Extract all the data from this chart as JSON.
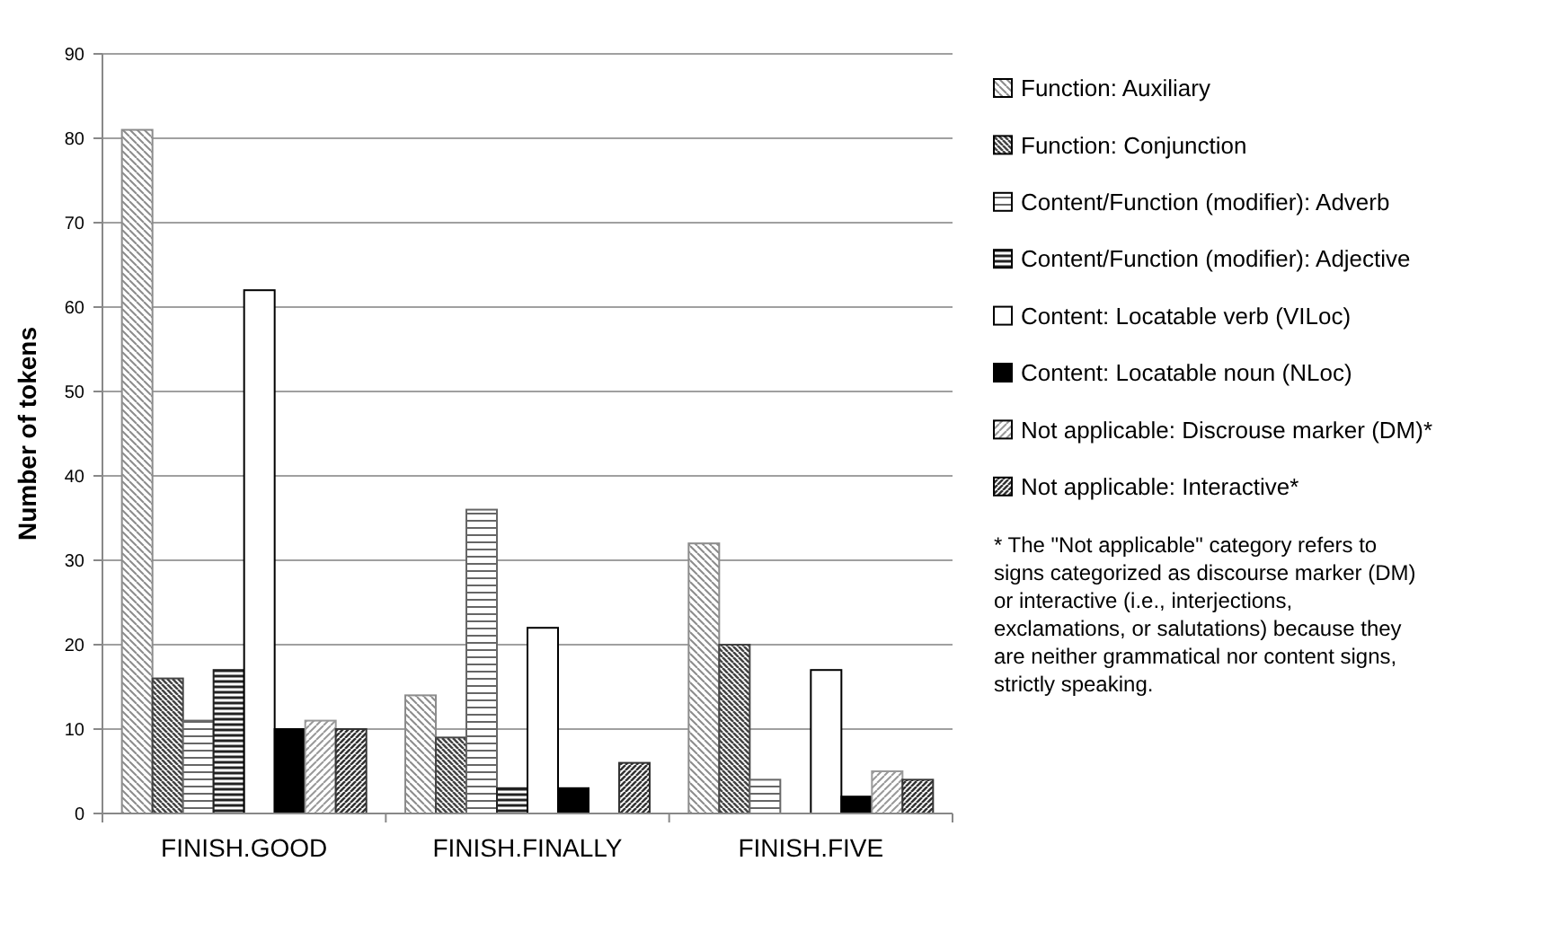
{
  "chart_data": {
    "type": "bar",
    "ylabel": "Number of tokens",
    "categories": [
      "FINISH.GOOD",
      "FINISH.FINALLY",
      "FINISH.FIVE"
    ],
    "series": [
      {
        "name": "Function: Auxiliary",
        "color": "#8c8c8c",
        "values": [
          81,
          14,
          32
        ]
      },
      {
        "name": "Function: Conjunction",
        "color": "#444444",
        "values": [
          16,
          9,
          20
        ]
      },
      {
        "name": "Content/Function (modifier): Adverb",
        "color": "#666666",
        "values": [
          11,
          36,
          4
        ]
      },
      {
        "name": "Content/Function (modifier): Adjective",
        "color": "#222222",
        "values": [
          17,
          3,
          null
        ]
      },
      {
        "name": "Content: Locatable verb (VILoc)",
        "color": "#ffffff",
        "values": [
          62,
          22,
          17
        ]
      },
      {
        "name": "Content: Locatable noun (NLoc)",
        "color": "#000000",
        "values": [
          10,
          3,
          2
        ]
      },
      {
        "name": "Not applicable: Discrouse marker (DM)*",
        "color": "#999999",
        "values": [
          11,
          null,
          5
        ]
      },
      {
        "name": "Not applicable: Interactive*",
        "color": "#333333",
        "values": [
          10,
          6,
          4
        ]
      }
    ],
    "ylim": [
      0,
      90
    ],
    "yticks": [
      0,
      10,
      20,
      30,
      40,
      50,
      60,
      70,
      80,
      90
    ],
    "grid": "y",
    "legend": "right",
    "annotations": [
      "* The \"Not applicable\" category refers to signs categorized as discourse marker (DM) or interactive (i.e., interjections, exclamations, or salutations) because they are neither grammatical nor content signs, strictly speaking."
    ]
  }
}
